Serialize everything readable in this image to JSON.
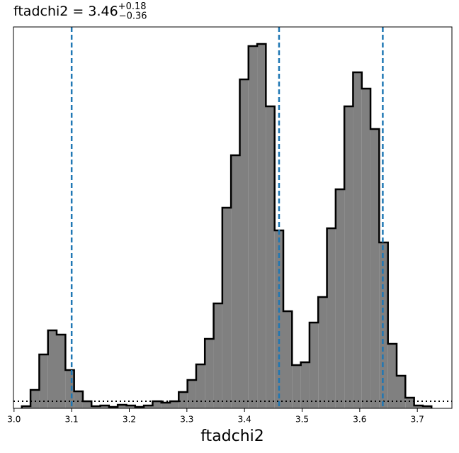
{
  "chart_data": {
    "type": "histogram",
    "title": "ftadchi2 = 3.46",
    "title_sup": "+0.18",
    "title_sub": "−0.36",
    "xlabel": "ftadchi2",
    "bins": [
      3.0135,
      3.0286,
      3.0438,
      3.0589,
      3.074,
      3.0892,
      3.1043,
      3.1194,
      3.1345,
      3.1497,
      3.1648,
      3.1799,
      3.1951,
      3.2102,
      3.2253,
      3.2405,
      3.2556,
      3.2707,
      3.2858,
      3.301,
      3.3161,
      3.3312,
      3.3464,
      3.3615,
      3.3766,
      3.3918,
      3.4069,
      3.422,
      3.4371,
      3.4523,
      3.4674,
      3.4825,
      3.4977,
      3.5128,
      3.5279,
      3.5431,
      3.5582,
      3.5733,
      3.5884,
      3.6036,
      3.6187,
      3.6338,
      3.649,
      3.6641,
      3.6792,
      3.6944,
      3.7095,
      3.7246
    ],
    "values": [
      3,
      26,
      76,
      110,
      104,
      54,
      24,
      10,
      3,
      4,
      2,
      5,
      4,
      2,
      4,
      10,
      8,
      10,
      23,
      40,
      62,
      98,
      148,
      283,
      357,
      464,
      511,
      514,
      426,
      251,
      137,
      61,
      65,
      121,
      157,
      254,
      309,
      426,
      474,
      451,
      394,
      234,
      91,
      46,
      15,
      4,
      3
    ],
    "color": "#808080",
    "edge_color": "#000000",
    "quantiles": [
      3.1,
      3.46,
      3.64
    ],
    "quantile_color": "#1f77b4",
    "hline": 10,
    "xlim": [
      2.999,
      3.76
    ],
    "ylim": [
      0,
      538
    ],
    "xticks": [
      {
        "value": 3,
        "label": "3.0"
      },
      3.1,
      3.2,
      3.3,
      3.4,
      3.5,
      3.6,
      3.7
    ]
  }
}
